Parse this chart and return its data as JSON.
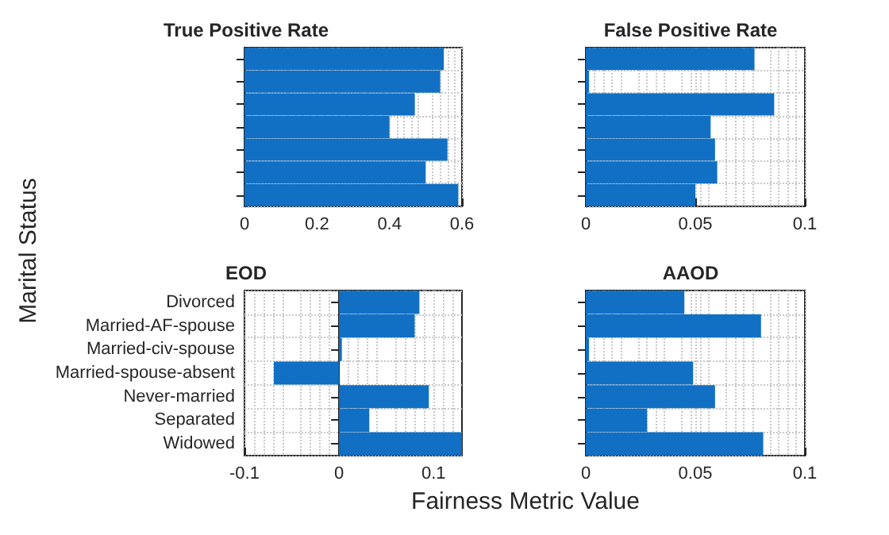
{
  "chart_data": [
    {
      "type": "bar",
      "orientation": "horizontal",
      "title": "True Positive Rate",
      "ylabel": "Marital Status",
      "categories": [
        null,
        null,
        null,
        null,
        null,
        null,
        null
      ],
      "values": [
        0.55,
        0.54,
        0.47,
        0.4,
        0.56,
        0.5,
        0.59
      ],
      "color": "#1170c4",
      "xlim": [
        0,
        0.6
      ],
      "xticks": [
        0,
        0.2,
        0.4,
        0.6
      ],
      "grid": true,
      "tick_labels": "x"
    },
    {
      "type": "bar",
      "orientation": "horizontal",
      "title": "False Positive Rate",
      "categories": [
        null,
        null,
        null,
        null,
        null,
        null,
        null
      ],
      "values": [
        0.077,
        0.0015,
        0.086,
        0.057,
        0.059,
        0.06,
        0.05
      ],
      "color": "#1170c4",
      "xlim": [
        0,
        0.1
      ],
      "xticks": [
        0,
        0.05,
        0.1
      ],
      "grid": true,
      "tick_labels": "x"
    },
    {
      "type": "bar",
      "orientation": "horizontal",
      "title": "EOD",
      "xlabel": "Fairness Metric Value",
      "categories": [
        "Divorced",
        "Married-AF-spouse",
        "Married-civ-spouse",
        "Married-spouse-absent",
        "Never-married",
        "Separated",
        "Widowed"
      ],
      "values": [
        0.085,
        0.08,
        0.003,
        -0.069,
        0.095,
        0.032,
        0.13
      ],
      "color": "#1170c4",
      "xlim": [
        -0.1,
        0.13
      ],
      "xticks": [
        -0.1,
        0,
        0.1
      ],
      "grid": true
    },
    {
      "type": "bar",
      "orientation": "horizontal",
      "title": "AAOD",
      "categories": [
        null,
        null,
        null,
        null,
        null,
        null,
        null
      ],
      "values": [
        0.045,
        0.08,
        0.0015,
        0.049,
        0.059,
        0.028,
        0.081
      ],
      "color": "#1170c4",
      "xlim": [
        0,
        0.1
      ],
      "xticks": [
        0,
        0.05,
        0.1
      ],
      "grid": true,
      "tick_labels": "x"
    }
  ]
}
